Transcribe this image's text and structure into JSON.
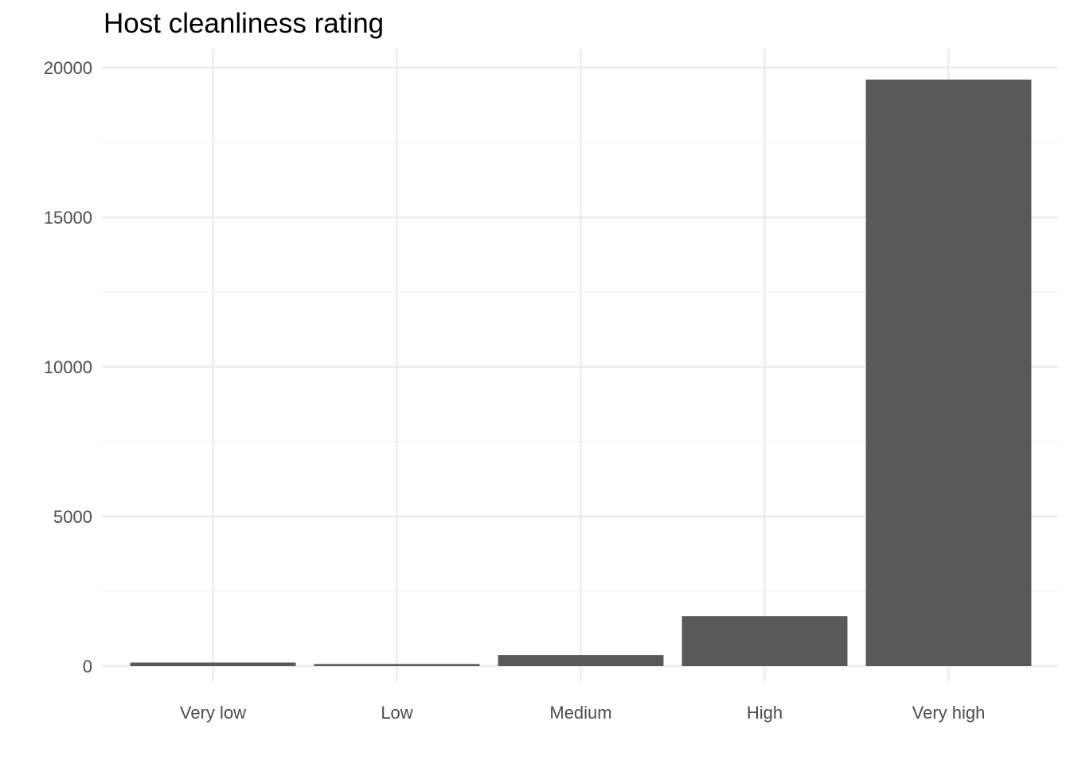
{
  "chart_data": {
    "type": "bar",
    "title": "Host cleanliness rating",
    "xlabel": "",
    "ylabel": "",
    "categories": [
      "Very low",
      "Low",
      "Medium",
      "High",
      "Very high"
    ],
    "values": [
      120,
      70,
      370,
      1670,
      19600
    ],
    "ylim": [
      0,
      20000
    ],
    "yticks": [
      0,
      5000,
      10000,
      15000,
      20000
    ],
    "ytick_labels": [
      "0",
      "5000",
      "10000",
      "15000",
      "20000"
    ],
    "grid": true,
    "legend": "none",
    "colors": {
      "bar": "#595959",
      "grid_major": "#ebebeb",
      "grid_minor": "#f2f2f2",
      "tick_text": "#4d4d4d",
      "background": "#ffffff"
    }
  }
}
